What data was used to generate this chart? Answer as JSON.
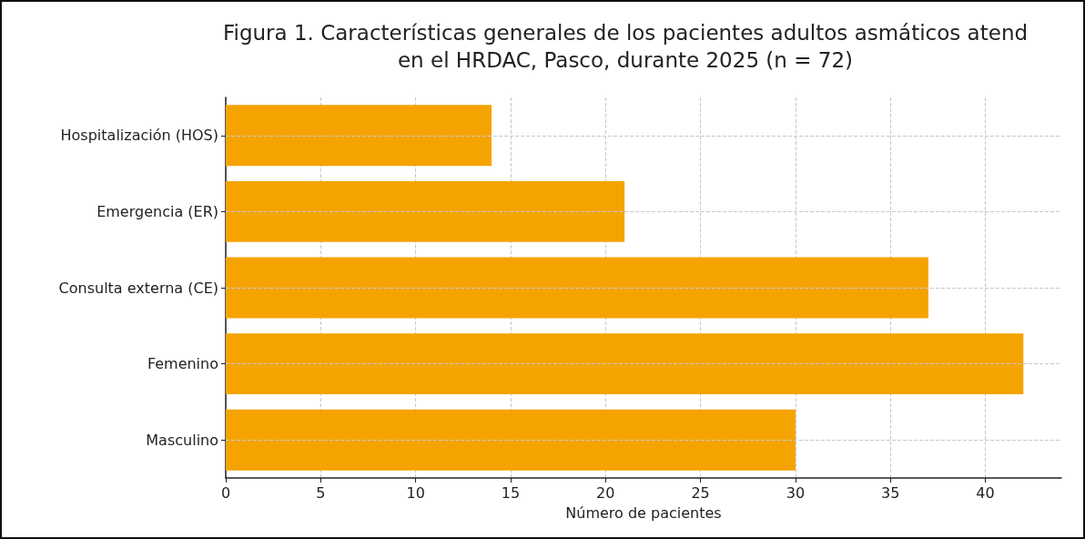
{
  "chart_data": {
    "type": "bar",
    "orientation": "horizontal",
    "title": "Figura 1. Características generales de los pacientes adultos asmáticos atend\nen el HRDAC, Pasco, durante 2025 (n = 72)",
    "xlabel": "Número de pacientes",
    "categories": [
      "Hospitalización (HOS)",
      "Emergencia (ER)",
      "Consulta externa (CE)",
      "Femenino",
      "Masculino"
    ],
    "values": [
      14,
      21,
      37,
      42,
      30
    ],
    "color": "#f5a300",
    "xlim": [
      0,
      44
    ],
    "xticks": [
      0,
      5,
      10,
      15,
      20,
      25,
      30,
      35,
      40
    ],
    "grid": true
  }
}
